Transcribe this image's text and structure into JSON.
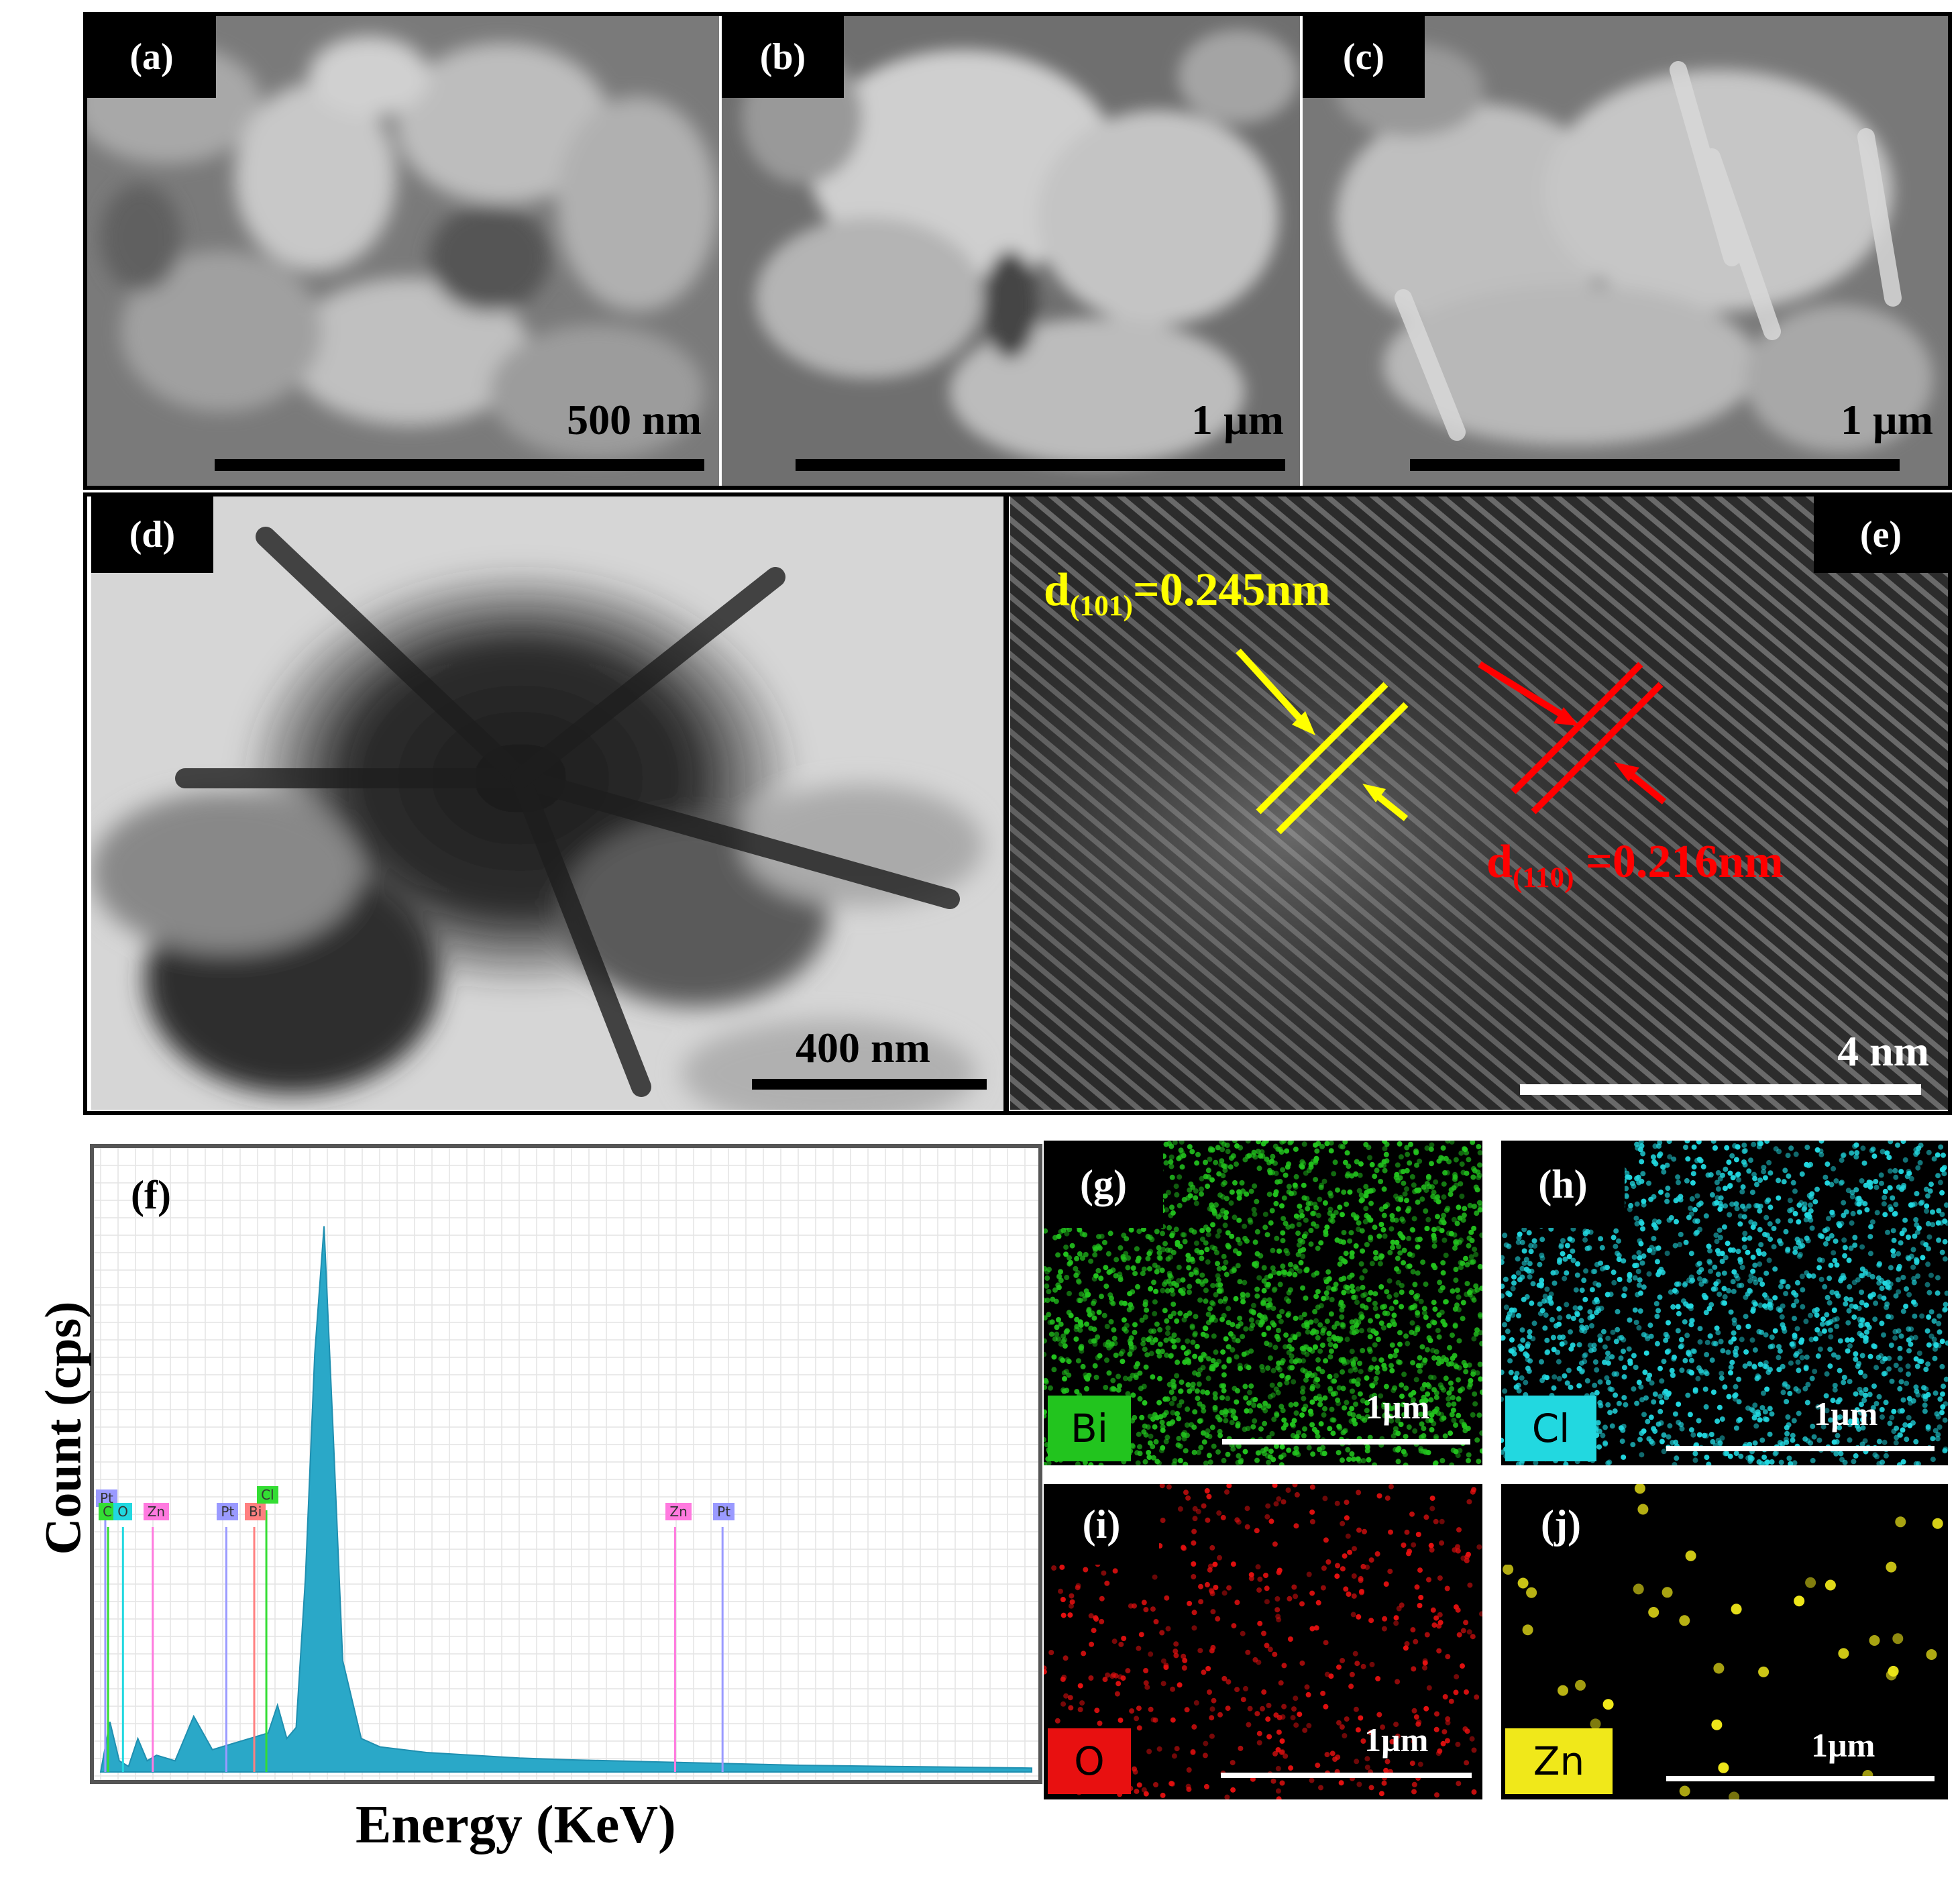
{
  "panels": {
    "a": {
      "tag": "(a)",
      "scale": "500 nm"
    },
    "b": {
      "tag": "(b)",
      "scale": "1 µm"
    },
    "c": {
      "tag": "(c)",
      "scale": "1 µm"
    },
    "d": {
      "tag": "(d)",
      "scale": "400 nm"
    },
    "e": {
      "tag": "(e)",
      "scale": "4 nm",
      "d101_pre": "d",
      "d101_sub": "(101)",
      "d101_val": "=0.245nm",
      "d110_pre": "d",
      "d110_sub": "(110)",
      "d110_val": " =0.216nm",
      "colors": {
        "d101": "#ffff00",
        "d110": "#ff0000"
      }
    },
    "f": {
      "tag": "(f)",
      "ylabel": "Count (cps)",
      "xlabel": "Energy (KeV)"
    },
    "g": {
      "tag": "(g)",
      "element": "Bi",
      "scale": "1µm",
      "color": "#22c41e"
    },
    "h": {
      "tag": "(h)",
      "element": "Cl",
      "scale": "1µm",
      "color": "#22d8e0"
    },
    "i": {
      "tag": "(i)",
      "element": "O",
      "scale": "1µm",
      "color": "#e81010"
    },
    "j": {
      "tag": "(j)",
      "element": "Zn",
      "scale": "1µm",
      "color": "#f0e81a"
    }
  },
  "chart_data": {
    "type": "area",
    "title": "",
    "xlabel": "Energy (KeV)",
    "ylabel": "Count (cps)",
    "x_relative": [
      0.0,
      0.01,
      0.02,
      0.03,
      0.04,
      0.05,
      0.06,
      0.08,
      0.1,
      0.12,
      0.14,
      0.16,
      0.18,
      0.19,
      0.2,
      0.21,
      0.22,
      0.23,
      0.24,
      0.25,
      0.26,
      0.28,
      0.3,
      0.35,
      0.4,
      0.45,
      0.5,
      0.55,
      0.6,
      0.65,
      0.7,
      0.75,
      0.8,
      0.85,
      0.9,
      0.95,
      1.0
    ],
    "y_relative": [
      0.0,
      0.09,
      0.02,
      0.01,
      0.06,
      0.02,
      0.03,
      0.02,
      0.1,
      0.04,
      0.05,
      0.06,
      0.07,
      0.12,
      0.06,
      0.08,
      0.35,
      0.75,
      0.98,
      0.6,
      0.2,
      0.06,
      0.045,
      0.035,
      0.03,
      0.025,
      0.022,
      0.02,
      0.018,
      0.016,
      0.014,
      0.012,
      0.011,
      0.01,
      0.009,
      0.008,
      0.007
    ],
    "series": [
      {
        "values_ref": "y_relative"
      }
    ],
    "markers": [
      {
        "label": "Pt",
        "color": "#9a9aff"
      },
      {
        "label": "Cl",
        "color": "#33dd33"
      },
      {
        "label": "O",
        "color": "#22d8e0"
      },
      {
        "label": "Zn",
        "color": "#ff7adf"
      },
      {
        "label": "Pt",
        "color": "#9a9aff"
      },
      {
        "label": "Bi",
        "color": "#ff8080"
      },
      {
        "label": "Cl",
        "color": "#33dd33"
      },
      {
        "label": "Zn",
        "color": "#ff7adf"
      },
      {
        "label": "Pt",
        "color": "#9a9aff"
      }
    ],
    "fill_color": "#2aa8c8",
    "grid": true
  }
}
